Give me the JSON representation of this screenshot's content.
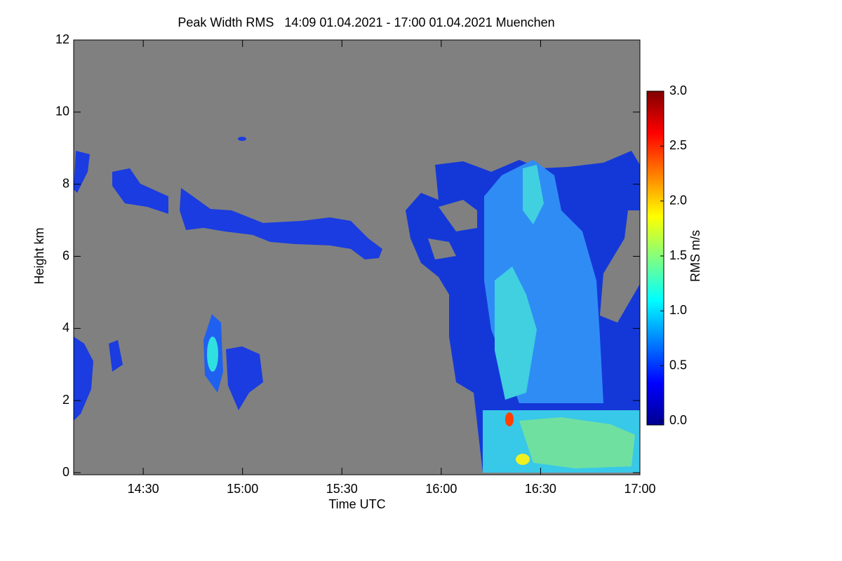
{
  "chart_data": {
    "type": "heatmap",
    "title": "Peak Width RMS   14:09 01.04.2021 - 17:00 01.04.2021 Muenchen",
    "x_label": "Time UTC",
    "y_label": "Height km",
    "xlim": [
      849,
      1020
    ],
    "xticks": [
      {
        "value": 870,
        "label": "14:30"
      },
      {
        "value": 900,
        "label": "15:00"
      },
      {
        "value": 930,
        "label": "15:30"
      },
      {
        "value": 960,
        "label": "16:00"
      },
      {
        "value": 990,
        "label": "16:30"
      },
      {
        "value": 1020,
        "label": "17:00"
      }
    ],
    "ylim": [
      0,
      12
    ],
    "yticks": [
      0,
      2,
      4,
      6,
      8,
      10,
      12
    ],
    "colorbar": {
      "label": "RMS m/s",
      "lim": [
        0,
        3
      ],
      "ticks": [
        {
          "value": 0,
          "label": "0.0"
        },
        {
          "value": 0.5,
          "label": "0.5"
        },
        {
          "value": 1,
          "label": "1.0"
        },
        {
          "value": 1.5,
          "label": "1.5"
        },
        {
          "value": 2,
          "label": "2.0"
        },
        {
          "value": 2.5,
          "label": "2.5"
        },
        {
          "value": 3,
          "label": "3.0"
        }
      ],
      "colormap": [
        "#00008f",
        "#0000ff",
        "#0080ff",
        "#00ffff",
        "#80ff80",
        "#ffff00",
        "#ff8000",
        "#ff0000",
        "#800000"
      ]
    }
  }
}
